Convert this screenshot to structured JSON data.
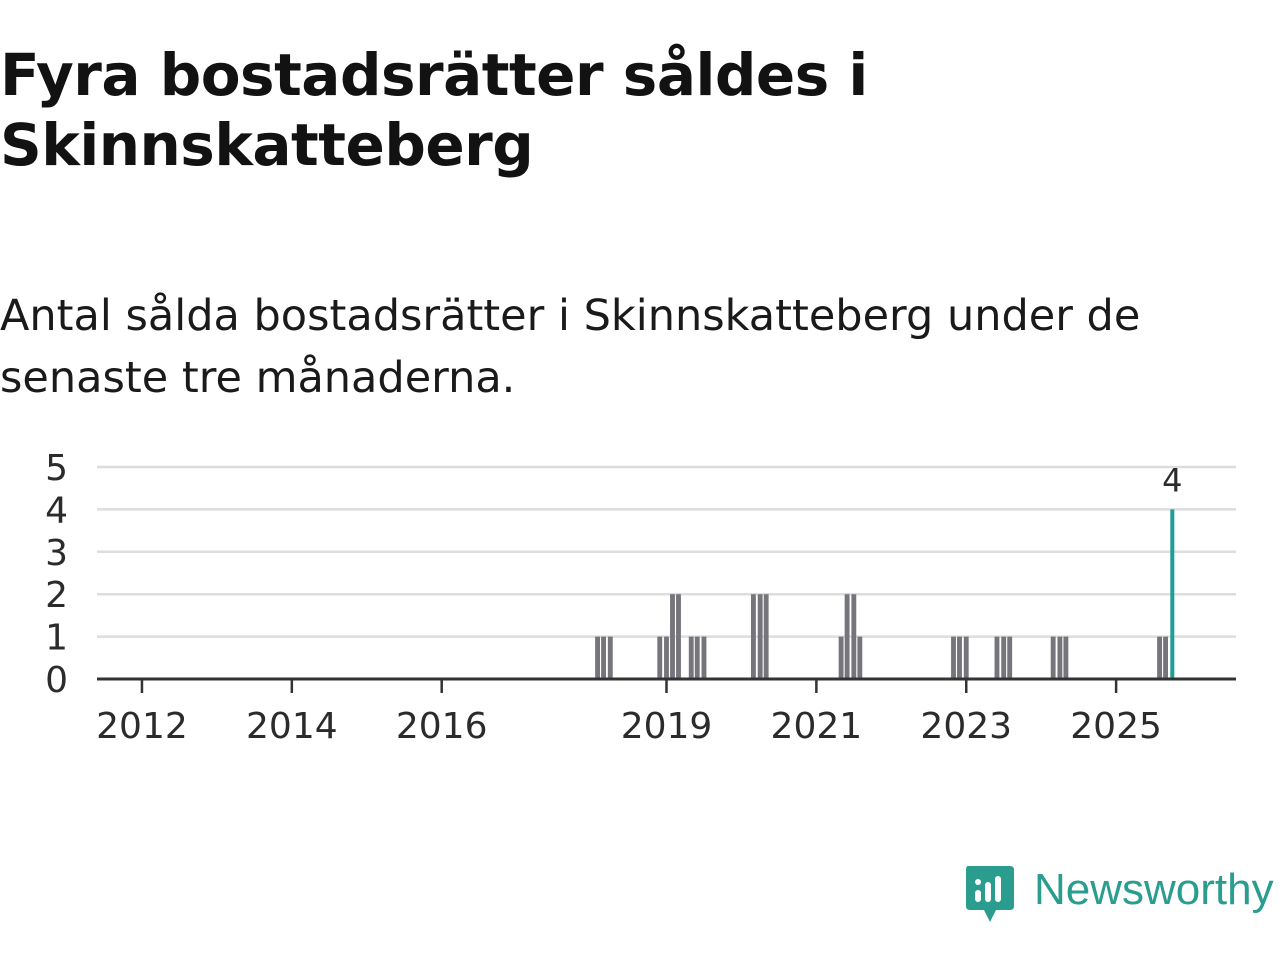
{
  "title": "Fyra bostadsrätter såldes i Skinnskatteberg",
  "subtitle": "Antal sålda bostadsrätter i Skinnskatteberg under de senaste tre månaderna.",
  "brand": {
    "name": "Newsworthy",
    "color": "#2a9d8f"
  },
  "colors": {
    "bar": "#76757b",
    "highlight": "#1f9e93",
    "grid": "#dddddd",
    "axis": "#333333"
  },
  "chart_data": {
    "type": "bar",
    "title": "Fyra bostadsrätter såldes i Skinnskatteberg",
    "subtitle": "Antal sålda bostadsrätter i Skinnskatteberg under de senaste tre månaderna.",
    "xlabel": "",
    "ylabel": "",
    "xlim": [
      2011.4,
      2026.6
    ],
    "ylim": [
      0,
      5
    ],
    "yticks": [
      0,
      1,
      2,
      3,
      4,
      5
    ],
    "xticks": [
      "2012",
      "2014",
      "2016",
      "2019",
      "2021",
      "2023",
      "2025"
    ],
    "grid": true,
    "bar_width_years": 0.065,
    "series": [
      {
        "name": "Antal sålda bostadsrätter",
        "points": [
          {
            "x": 2018.08,
            "y": 1
          },
          {
            "x": 2018.16,
            "y": 1
          },
          {
            "x": 2018.25,
            "y": 1
          },
          {
            "x": 2018.91,
            "y": 1
          },
          {
            "x": 2019.0,
            "y": 1
          },
          {
            "x": 2019.08,
            "y": 2
          },
          {
            "x": 2019.16,
            "y": 2
          },
          {
            "x": 2019.33,
            "y": 1
          },
          {
            "x": 2019.41,
            "y": 1
          },
          {
            "x": 2019.5,
            "y": 1
          },
          {
            "x": 2020.16,
            "y": 2
          },
          {
            "x": 2020.25,
            "y": 2
          },
          {
            "x": 2020.33,
            "y": 2
          },
          {
            "x": 2021.33,
            "y": 1
          },
          {
            "x": 2021.41,
            "y": 2
          },
          {
            "x": 2021.5,
            "y": 2
          },
          {
            "x": 2021.58,
            "y": 1
          },
          {
            "x": 2022.83,
            "y": 1
          },
          {
            "x": 2022.91,
            "y": 1
          },
          {
            "x": 2023.0,
            "y": 1
          },
          {
            "x": 2023.41,
            "y": 1
          },
          {
            "x": 2023.5,
            "y": 1
          },
          {
            "x": 2023.58,
            "y": 1
          },
          {
            "x": 2024.16,
            "y": 1
          },
          {
            "x": 2024.25,
            "y": 1
          },
          {
            "x": 2024.33,
            "y": 1
          },
          {
            "x": 2025.58,
            "y": 1
          },
          {
            "x": 2025.66,
            "y": 1
          }
        ]
      }
    ],
    "highlight": {
      "x": 2025.75,
      "y": 4,
      "label": "4"
    }
  }
}
